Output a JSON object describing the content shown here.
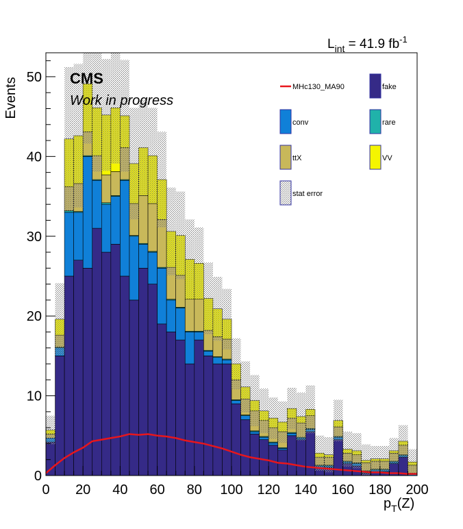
{
  "chart_data": {
    "type": "bar",
    "stacked": true,
    "histogram": true,
    "xlabel_main": "p",
    "xlabel_sub": "T",
    "xlabel_arg": "(Z)",
    "ylabel": "Events",
    "xlim": [
      0,
      200
    ],
    "ylim": [
      0,
      53
    ],
    "bin_width": 5,
    "x_ticks": [
      0,
      20,
      40,
      60,
      80,
      100,
      120,
      140,
      160,
      180,
      200
    ],
    "y_ticks": [
      0,
      10,
      20,
      30,
      40,
      50
    ],
    "grid": false,
    "legend_position": "top-right",
    "cms_label": "CMS",
    "work_label": "Work in progress",
    "lumi": {
      "prefix": "L",
      "sub": "int",
      "mid": " = 41.9 fb",
      "sup": "-1"
    },
    "bin_edges_start": [
      0,
      5,
      10,
      15,
      20,
      25,
      30,
      35,
      40,
      45,
      50,
      55,
      60,
      65,
      70,
      75,
      80,
      85,
      90,
      95,
      100,
      105,
      110,
      115,
      120,
      125,
      130,
      135,
      140,
      145,
      150,
      155,
      160,
      165,
      170,
      175,
      180,
      185,
      190,
      195
    ],
    "series": [
      {
        "name": "fake",
        "color": "#352a87",
        "values": [
          4.2,
          15,
          25,
          27,
          26,
          31,
          28,
          29,
          25,
          22,
          26,
          24,
          19,
          18,
          17,
          14,
          17,
          15,
          14,
          14,
          9,
          7,
          5.2,
          4.5,
          3.8,
          3.2,
          5,
          4.5,
          5.5,
          1,
          1,
          4.5,
          1.5,
          1.2,
          0.3,
          0.5,
          0.5,
          1.5,
          2.3,
          0
        ]
      },
      {
        "name": "conv",
        "color": "#1080d8",
        "values": [
          0.5,
          1,
          8,
          6,
          14,
          6,
          6,
          6,
          12,
          8,
          3,
          4,
          7,
          4,
          4,
          4,
          1,
          0.6,
          0.8,
          0.5,
          0.4,
          0.5,
          0.3,
          0.3,
          0.3,
          0.2,
          0.3,
          0.2,
          0.3,
          0.2,
          0.2,
          0.3,
          0.2,
          0.3,
          0.2,
          0.2,
          0.2,
          0.2,
          0.2,
          0.2
        ]
      },
      {
        "name": "rare",
        "color": "#20b2aa",
        "values": [
          0,
          0.1,
          0.2,
          0.1,
          0.1,
          0.1,
          0.2,
          0.1,
          0.1,
          0.1,
          0.1,
          0.1,
          0.1,
          0.1,
          0.1,
          0.1,
          0.1,
          0.1,
          0.1,
          0.1,
          0.1,
          0.1,
          0.1,
          0.1,
          0.1,
          0.1,
          0.1,
          0.1,
          0.1,
          0.1,
          0.1,
          0.1,
          0.1,
          0.1,
          0.1,
          0.1,
          0.1,
          0.1,
          0.1,
          0.1
        ]
      },
      {
        "name": "ttX",
        "color": "#c8b85a",
        "values": [
          0.5,
          1.5,
          3,
          3.5,
          3,
          3,
          3.5,
          3,
          4,
          4,
          6,
          6,
          6,
          4,
          4,
          4,
          4,
          2.5,
          2.5,
          2.5,
          2.5,
          2,
          2.5,
          2,
          1.8,
          2,
          1.8,
          1.8,
          1.6,
          1,
          1,
          1.2,
          1,
          1,
          1,
          1,
          1,
          1,
          1.2,
          1
        ]
      },
      {
        "name": "VV",
        "color": "#f5f500",
        "values": [
          0.5,
          2,
          6,
          6,
          6,
          6,
          7.5,
          8,
          4,
          5,
          6,
          6,
          5,
          4.5,
          5,
          5,
          4.5,
          4,
          3.5,
          2.5,
          2,
          1.5,
          1.3,
          1.2,
          1.2,
          1.2,
          1.2,
          0.8,
          0.8,
          0.5,
          0.3,
          0.8,
          0.5,
          0.5,
          0.3,
          0.3,
          0.3,
          0.3,
          0.5,
          0.4
        ]
      }
    ],
    "stat_error": {
      "name": "stat error",
      "color": "#888888",
      "values": [
        1.8,
        4.5,
        9,
        9,
        7.5,
        8,
        7,
        7,
        7,
        7,
        6,
        6,
        6,
        5.5,
        5.5,
        5,
        4.5,
        4.5,
        4,
        3.8,
        3.2,
        3.2,
        3.2,
        2.8,
        2.6,
        2.6,
        2.6,
        3,
        3,
        2.2,
        2.2,
        2.6,
        2.2,
        2.2,
        2,
        1.6,
        1.6,
        1.6,
        2,
        1.6
      ]
    },
    "signal": {
      "name": "MHc130_MA90",
      "color": "#e8161c",
      "x": [
        0,
        5,
        10,
        15,
        20,
        25,
        30,
        35,
        40,
        45,
        50,
        55,
        60,
        65,
        70,
        75,
        80,
        85,
        90,
        95,
        100,
        105,
        110,
        115,
        120,
        125,
        130,
        135,
        140,
        145,
        150,
        155,
        160,
        165,
        170,
        175,
        180,
        185,
        190,
        195,
        200
      ],
      "y": [
        0.3,
        1.3,
        2.2,
        2.9,
        3.5,
        4.3,
        4.5,
        4.7,
        4.9,
        5.2,
        5.1,
        5.2,
        5.0,
        4.9,
        4.7,
        4.4,
        4.2,
        4.0,
        3.7,
        3.4,
        3.0,
        2.6,
        2.3,
        2.1,
        1.9,
        1.6,
        1.5,
        1.3,
        1.1,
        1.0,
        0.9,
        0.8,
        0.7,
        0.6,
        0.5,
        0.4,
        0.4,
        0.3,
        0.3,
        0.2,
        0.2
      ]
    },
    "legend_entries": [
      {
        "key": "signal",
        "label": "MHc130_MA90",
        "kind": "line",
        "color": "#e8161c"
      },
      {
        "key": "fake",
        "label": "fake",
        "kind": "box",
        "color": "#352a87"
      },
      {
        "key": "conv",
        "label": "conv",
        "kind": "box",
        "color": "#1080d8"
      },
      {
        "key": "rare",
        "label": "rare",
        "kind": "box",
        "color": "#20b2aa"
      },
      {
        "key": "ttX",
        "label": "ttX",
        "kind": "box",
        "color": "#c8b85a"
      },
      {
        "key": "VV",
        "label": "VV",
        "kind": "box",
        "color": "#f5f500"
      },
      {
        "key": "stat",
        "label": "stat error",
        "kind": "hatch",
        "color": "#888888"
      }
    ]
  }
}
